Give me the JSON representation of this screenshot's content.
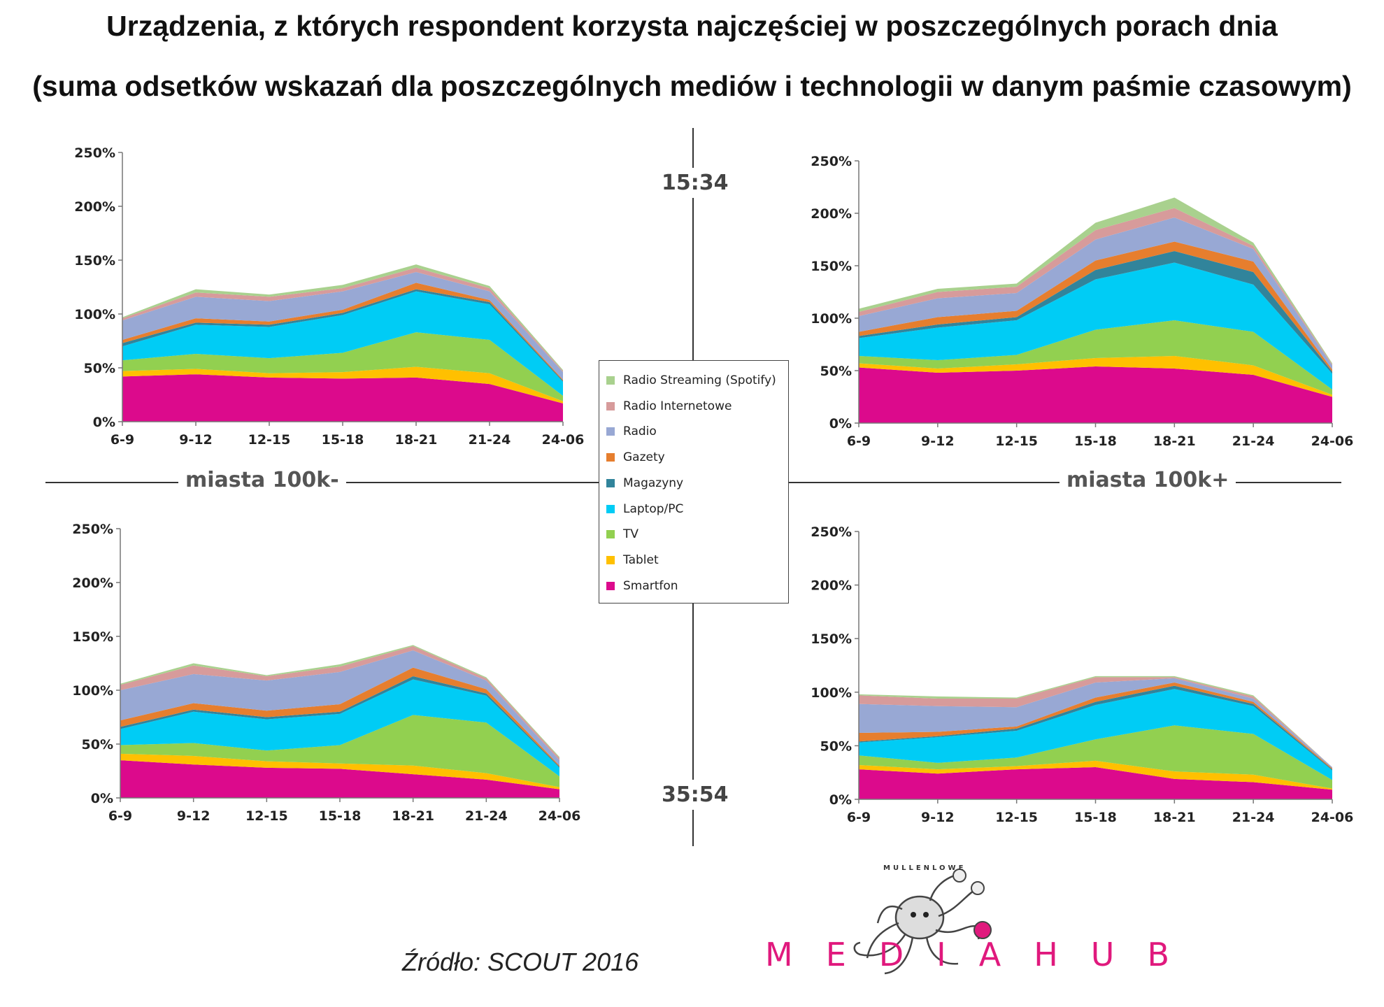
{
  "title_line1": "Urządzenia, z których respondent korzysta najczęściej w poszczególnych porach dnia",
  "title_line2": "(suma odsetków wskazań dla poszczególnych mediów i technologii w danym paśmie czasowym)",
  "labels": {
    "left_section": "miasta 100k-",
    "right_section": "miasta 100k+",
    "age_top": "15:34",
    "age_bottom": "35:54"
  },
  "source": "Źródło: SCOUT 2016",
  "logo": {
    "top_text": "MULLENLOWE",
    "main_text": "MEDIAHUB"
  },
  "legend": [
    {
      "name": "Radio Streaming (Spotify)",
      "color": "#a9d18e"
    },
    {
      "name": "Radio Internetowe",
      "color": "#d79b9b"
    },
    {
      "name": "Radio",
      "color": "#98a8d4"
    },
    {
      "name": "Gazety",
      "color": "#e67e2e"
    },
    {
      "name": "Magazyny",
      "color": "#31849b"
    },
    {
      "name": "Laptop/PC",
      "color": "#00ccf5"
    },
    {
      "name": "TV",
      "color": "#92d050"
    },
    {
      "name": "Tablet",
      "color": "#ffc000"
    },
    {
      "name": "Smartfon",
      "color": "#dc0a8c"
    }
  ],
  "chart_data": [
    {
      "type": "area",
      "stacked": true,
      "position": "top-left",
      "segment": "miasta 100k-",
      "age": "15:34",
      "categories": [
        "6-9",
        "9-12",
        "12-15",
        "15-18",
        "18-21",
        "21-24",
        "24-06"
      ],
      "ylim": [
        0,
        250
      ],
      "yticks": [
        "0%",
        "50%",
        "100%",
        "150%",
        "200%",
        "250%"
      ],
      "series": [
        {
          "name": "Smartfon",
          "values": [
            42,
            44,
            41,
            40,
            41,
            35,
            17
          ]
        },
        {
          "name": "Tablet",
          "values": [
            5,
            5,
            4,
            6,
            10,
            10,
            2
          ]
        },
        {
          "name": "TV",
          "values": [
            10,
            14,
            14,
            18,
            32,
            31,
            5
          ]
        },
        {
          "name": "Laptop/PC",
          "values": [
            13,
            27,
            29,
            35,
            38,
            33,
            13
          ]
        },
        {
          "name": "Magazyny",
          "values": [
            3,
            2,
            2,
            2,
            2,
            2,
            1
          ]
        },
        {
          "name": "Gazety",
          "values": [
            3,
            4,
            3,
            3,
            6,
            2,
            1
          ]
        },
        {
          "name": "Radio",
          "values": [
            18,
            20,
            19,
            17,
            10,
            8,
            7
          ]
        },
        {
          "name": "Radio Internetowe",
          "values": [
            2,
            4,
            4,
            3,
            4,
            3,
            1
          ]
        },
        {
          "name": "Radio Streaming (Spotify)",
          "values": [
            1,
            3,
            2,
            3,
            3,
            2,
            1
          ]
        }
      ]
    },
    {
      "type": "area",
      "stacked": true,
      "position": "top-right",
      "segment": "miasta 100k+",
      "age": "15:34",
      "categories": [
        "6-9",
        "9-12",
        "12-15",
        "15-18",
        "18-21",
        "21-24",
        "24-06"
      ],
      "ylim": [
        0,
        250
      ],
      "yticks": [
        "0%",
        "50%",
        "100%",
        "150%",
        "200%",
        "250%"
      ],
      "series": [
        {
          "name": "Smartfon",
          "values": [
            53,
            48,
            50,
            54,
            52,
            46,
            25
          ]
        },
        {
          "name": "Tablet",
          "values": [
            4,
            4,
            6,
            8,
            12,
            9,
            2
          ]
        },
        {
          "name": "TV",
          "values": [
            7,
            8,
            9,
            27,
            34,
            32,
            5
          ]
        },
        {
          "name": "Laptop/PC",
          "values": [
            17,
            31,
            33,
            48,
            55,
            45,
            15
          ]
        },
        {
          "name": "Magazyny",
          "values": [
            2,
            3,
            3,
            9,
            11,
            12,
            2
          ]
        },
        {
          "name": "Gazety",
          "values": [
            4,
            7,
            6,
            9,
            9,
            10,
            2
          ]
        },
        {
          "name": "Radio",
          "values": [
            15,
            18,
            17,
            20,
            23,
            12,
            4
          ]
        },
        {
          "name": "Radio Internetowe",
          "values": [
            4,
            6,
            6,
            9,
            9,
            3,
            1
          ]
        },
        {
          "name": "Radio Streaming (Spotify)",
          "values": [
            3,
            3,
            3,
            7,
            10,
            3,
            1
          ]
        }
      ]
    },
    {
      "type": "area",
      "stacked": true,
      "position": "bottom-left",
      "segment": "miasta 100k-",
      "age": "35:54",
      "categories": [
        "6-9",
        "9-12",
        "12-15",
        "15-18",
        "18-21",
        "21-24",
        "24-06"
      ],
      "ylim": [
        0,
        250
      ],
      "yticks": [
        "0%",
        "50%",
        "100%",
        "150%",
        "200%",
        "250%"
      ],
      "series": [
        {
          "name": "Smartfon",
          "values": [
            35,
            31,
            28,
            27,
            22,
            17,
            8
          ]
        },
        {
          "name": "Tablet",
          "values": [
            6,
            8,
            6,
            5,
            8,
            6,
            2
          ]
        },
        {
          "name": "TV",
          "values": [
            8,
            12,
            10,
            17,
            47,
            47,
            10
          ]
        },
        {
          "name": "Laptop/PC",
          "values": [
            15,
            29,
            29,
            29,
            33,
            25,
            8
          ]
        },
        {
          "name": "Magazyny",
          "values": [
            2,
            2,
            2,
            2,
            3,
            2,
            1
          ]
        },
        {
          "name": "Gazety",
          "values": [
            6,
            6,
            6,
            7,
            8,
            4,
            1
          ]
        },
        {
          "name": "Radio",
          "values": [
            28,
            27,
            28,
            30,
            16,
            8,
            5
          ]
        },
        {
          "name": "Radio Internetowe",
          "values": [
            5,
            8,
            4,
            5,
            4,
            2,
            2
          ]
        },
        {
          "name": "Radio Streaming (Spotify)",
          "values": [
            1,
            2,
            1,
            2,
            1,
            1,
            1
          ]
        }
      ]
    },
    {
      "type": "area",
      "stacked": true,
      "position": "bottom-right",
      "segment": "miasta 100k+",
      "age": "35:54",
      "categories": [
        "6-9",
        "9-12",
        "12-15",
        "15-18",
        "18-21",
        "21-24",
        "24-06"
      ],
      "ylim": [
        0,
        250
      ],
      "yticks": [
        "0%",
        "50%",
        "100%",
        "150%",
        "200%",
        "250%"
      ],
      "series": [
        {
          "name": "Smartfon",
          "values": [
            28,
            24,
            28,
            30,
            19,
            16,
            9
          ]
        },
        {
          "name": "Tablet",
          "values": [
            4,
            4,
            3,
            6,
            7,
            7,
            1
          ]
        },
        {
          "name": "TV",
          "values": [
            9,
            6,
            8,
            20,
            43,
            38,
            8
          ]
        },
        {
          "name": "Laptop/PC",
          "values": [
            12,
            24,
            25,
            32,
            34,
            26,
            9
          ]
        },
        {
          "name": "Magazyny",
          "values": [
            1,
            1,
            2,
            3,
            3,
            2,
            1
          ]
        },
        {
          "name": "Gazety",
          "values": [
            8,
            4,
            2,
            4,
            3,
            2,
            1
          ]
        },
        {
          "name": "Radio",
          "values": [
            27,
            24,
            18,
            14,
            4,
            3,
            1
          ]
        },
        {
          "name": "Radio Internetowe",
          "values": [
            8,
            7,
            8,
            5,
            1,
            2,
            0
          ]
        },
        {
          "name": "Radio Streaming (Spotify)",
          "values": [
            1,
            2,
            1,
            1,
            1,
            1,
            0
          ]
        }
      ]
    }
  ]
}
